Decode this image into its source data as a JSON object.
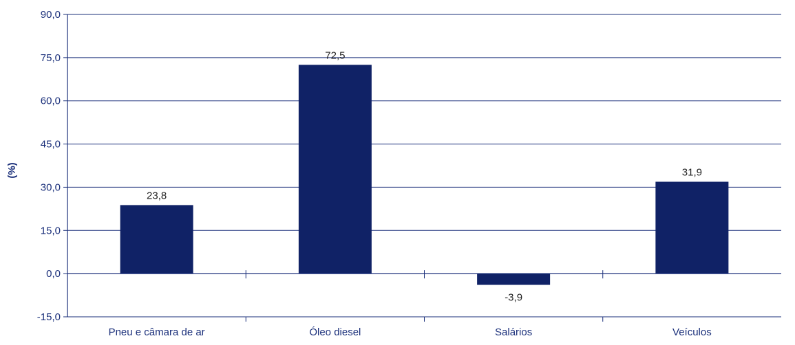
{
  "chart_data": {
    "type": "bar",
    "title": "",
    "xlabel": "",
    "ylabel": "(%)",
    "ylim": [
      -15,
      90
    ],
    "yticks": [
      -15,
      0,
      15,
      30,
      45,
      60,
      75,
      90
    ],
    "ytick_labels": [
      "-15,0",
      "0,0",
      "15,0",
      "30,0",
      "45,0",
      "60,0",
      "75,0",
      "90,0"
    ],
    "grid": true,
    "categories": [
      "Pneu e câmara de ar",
      "Óleo diesel",
      "Salários",
      "Veículos"
    ],
    "values": [
      23.8,
      72.5,
      -3.9,
      31.9
    ],
    "value_labels": [
      "23,8",
      "72,5",
      "-3,9",
      "31,9"
    ],
    "colors": {
      "bar": "#102266",
      "axis": "#1a2f7a",
      "text": "#1a2f7a",
      "label": "#222222"
    }
  }
}
